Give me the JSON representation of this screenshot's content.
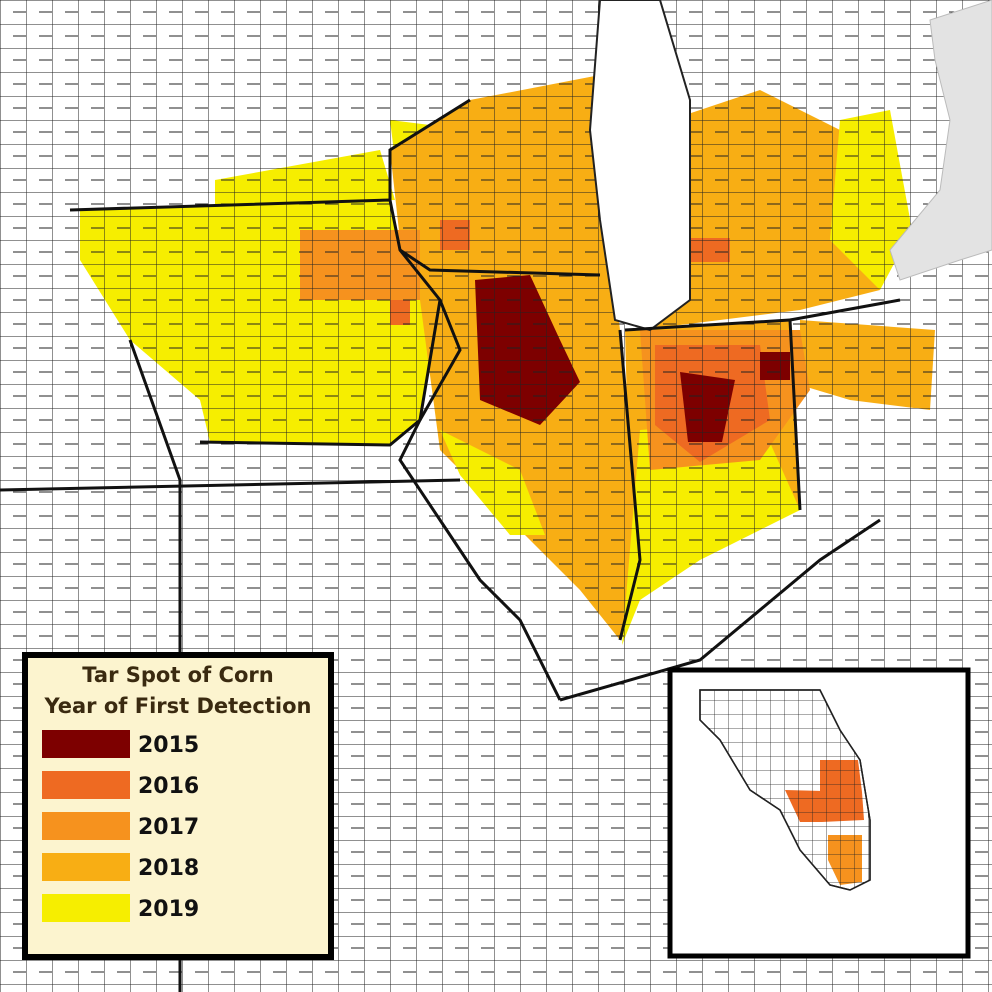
{
  "legend": {
    "title": "Tar Spot of Corn",
    "subtitle": "Year of First Detection",
    "items": [
      {
        "label": "2015",
        "color": "#7d0000"
      },
      {
        "label": "2016",
        "color": "#ee6a22"
      },
      {
        "label": "2017",
        "color": "#f6921e"
      },
      {
        "label": "2018",
        "color": "#f8ae14"
      },
      {
        "label": "2019",
        "color": "#f6ee00"
      }
    ]
  }
}
